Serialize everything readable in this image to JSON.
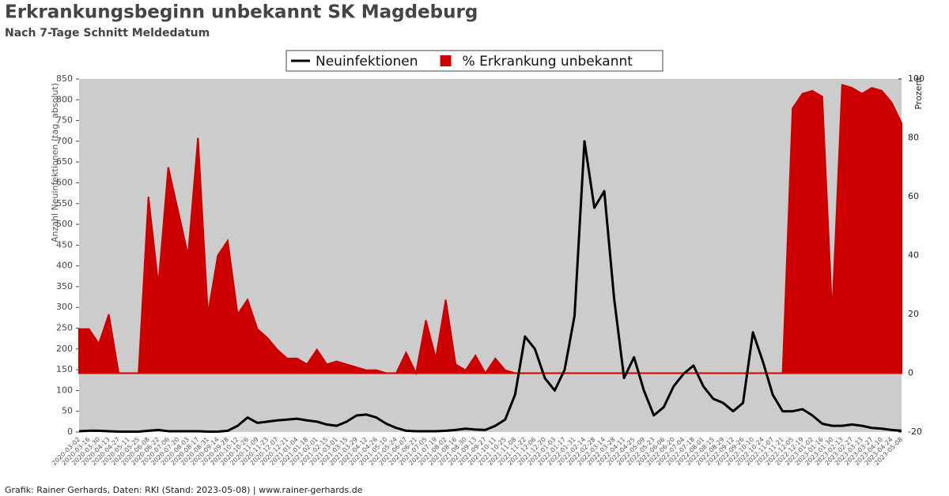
{
  "chart_data": {
    "type": "area-line",
    "title": "Erkrankungsbeginn unbekannt SK Magdeburg",
    "subtitle": "Nach 7-Tage Schnitt Meldedatum",
    "y_label": "Anzahl Neuinfektionen (tag. absolut)",
    "y2_label": "Prozent",
    "footer": "Grafik: Rainer Gerhards, Daten: RKI (Stand: 2023-05-08) | www.rainer-gerhards.de",
    "legend": "top",
    "background": "#cccccc",
    "x": [
      "2020-03-02",
      "2020-03-16",
      "2020-03-30",
      "2020-04-13",
      "2020-04-27",
      "2020-05-11",
      "2020-05-25",
      "2020-06-08",
      "2020-06-22",
      "2020-07-06",
      "2020-07-20",
      "2020-08-03",
      "2020-08-17",
      "2020-08-31",
      "2020-09-14",
      "2020-09-28",
      "2020-10-12",
      "2020-10-26",
      "2020-11-09",
      "2020-11-23",
      "2020-12-07",
      "2020-12-21",
      "2021-01-04",
      "2021-01-18",
      "2021-02-01",
      "2021-02-15",
      "2021-03-01",
      "2021-03-15",
      "2021-03-29",
      "2021-04-12",
      "2021-04-26",
      "2021-05-10",
      "2021-05-24",
      "2021-06-07",
      "2021-06-21",
      "2021-07-05",
      "2021-07-19",
      "2021-08-02",
      "2021-08-16",
      "2021-08-30",
      "2021-09-13",
      "2021-09-27",
      "2021-10-11",
      "2021-10-25",
      "2021-11-08",
      "2021-11-22",
      "2021-12-06",
      "2021-12-20",
      "2022-01-03",
      "2022-01-17",
      "2022-01-31",
      "2022-02-14",
      "2022-02-28",
      "2022-03-14",
      "2022-03-28",
      "2022-04-11",
      "2022-04-25",
      "2022-05-09",
      "2022-05-23",
      "2022-06-06",
      "2022-06-20",
      "2022-07-04",
      "2022-07-18",
      "2022-08-01",
      "2022-08-15",
      "2022-08-29",
      "2022-09-12",
      "2022-09-26",
      "2022-10-10",
      "2022-10-24",
      "2022-11-07",
      "2022-11-21",
      "2022-12-05",
      "2022-12-19",
      "2023-01-02",
      "2023-01-16",
      "2023-01-30",
      "2023-02-13",
      "2023-02-27",
      "2023-03-13",
      "2023-03-27",
      "2023-04-10",
      "2023-04-24",
      "2023-05-08"
    ],
    "series": [
      {
        "name": "% Erkrankung unbekannt",
        "color": "#cc0000",
        "axis": "y2",
        "kind": "area",
        "values": [
          15,
          15,
          10,
          20,
          0,
          0,
          0,
          60,
          30,
          70,
          55,
          40,
          80,
          20,
          40,
          45,
          20,
          25,
          15,
          12,
          8,
          5,
          5,
          3,
          8,
          3,
          4,
          3,
          2,
          1,
          1,
          0,
          0,
          7,
          0,
          18,
          5,
          25,
          3,
          1,
          6,
          0,
          5,
          1,
          0,
          0,
          0,
          0,
          0,
          0,
          0,
          0,
          0,
          0,
          0,
          0,
          0,
          0,
          0,
          0,
          0,
          0,
          0,
          0,
          0,
          0,
          0,
          0,
          0,
          0,
          0,
          0,
          90,
          95,
          96,
          94,
          20,
          98,
          97,
          95,
          97,
          96,
          92,
          85
        ]
      },
      {
        "name": "Neuinfektionen",
        "color": "#000000",
        "axis": "y",
        "kind": "line",
        "values": [
          2,
          3,
          3,
          2,
          1,
          1,
          1,
          3,
          5,
          2,
          2,
          2,
          2,
          1,
          1,
          3,
          15,
          35,
          22,
          25,
          28,
          30,
          32,
          28,
          25,
          18,
          15,
          25,
          40,
          42,
          35,
          20,
          10,
          3,
          2,
          2,
          2,
          3,
          5,
          8,
          6,
          5,
          15,
          30,
          90,
          230,
          200,
          130,
          100,
          150,
          280,
          700,
          540,
          580,
          320,
          130,
          180,
          100,
          40,
          60,
          110,
          140,
          160,
          110,
          80,
          70,
          50,
          70,
          240,
          170,
          90,
          50,
          50,
          55,
          40,
          20,
          15,
          15,
          18,
          15,
          10,
          8,
          5,
          3
        ]
      }
    ],
    "ylim": [
      0,
      850
    ],
    "yticks": [
      0,
      50,
      100,
      150,
      200,
      250,
      300,
      350,
      400,
      450,
      500,
      550,
      600,
      650,
      700,
      750,
      800,
      850
    ],
    "y2lim": [
      -20,
      100
    ],
    "y2ticks": [
      -20,
      0,
      20,
      40,
      60,
      80,
      100
    ]
  }
}
